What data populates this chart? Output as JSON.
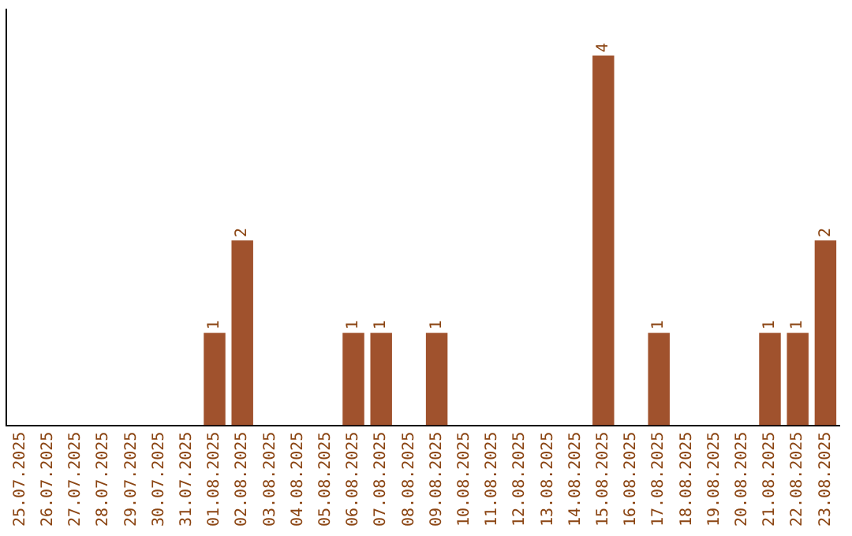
{
  "chart_data": {
    "type": "bar",
    "categories": [
      "25.07.2025",
      "26.07.2025",
      "27.07.2025",
      "28.07.2025",
      "29.07.2025",
      "30.07.2025",
      "31.07.2025",
      "01.08.2025",
      "02.08.2025",
      "03.08.2025",
      "04.08.2025",
      "05.08.2025",
      "06.08.2025",
      "07.08.2025",
      "08.08.2025",
      "09.08.2025",
      "10.08.2025",
      "11.08.2025",
      "12.08.2025",
      "13.08.2025",
      "14.08.2025",
      "15.08.2025",
      "16.08.2025",
      "17.08.2025",
      "18.08.2025",
      "19.08.2025",
      "20.08.2025",
      "21.08.2025",
      "22.08.2025",
      "23.08.2025"
    ],
    "values": [
      0,
      0,
      0,
      0,
      0,
      0,
      0,
      1,
      2,
      0,
      0,
      0,
      1,
      1,
      0,
      1,
      0,
      0,
      0,
      0,
      0,
      4,
      0,
      1,
      0,
      0,
      0,
      1,
      1,
      2
    ],
    "value_labels": [
      null,
      null,
      null,
      null,
      null,
      null,
      null,
      "1",
      "2",
      null,
      null,
      null,
      "1",
      "1",
      null,
      "1",
      null,
      null,
      null,
      null,
      null,
      "4",
      null,
      "1",
      null,
      null,
      null,
      "1",
      "1",
      "2"
    ],
    "color": "#a0522d",
    "tick_labels": "x",
    "grid": false,
    "legend": false
  }
}
